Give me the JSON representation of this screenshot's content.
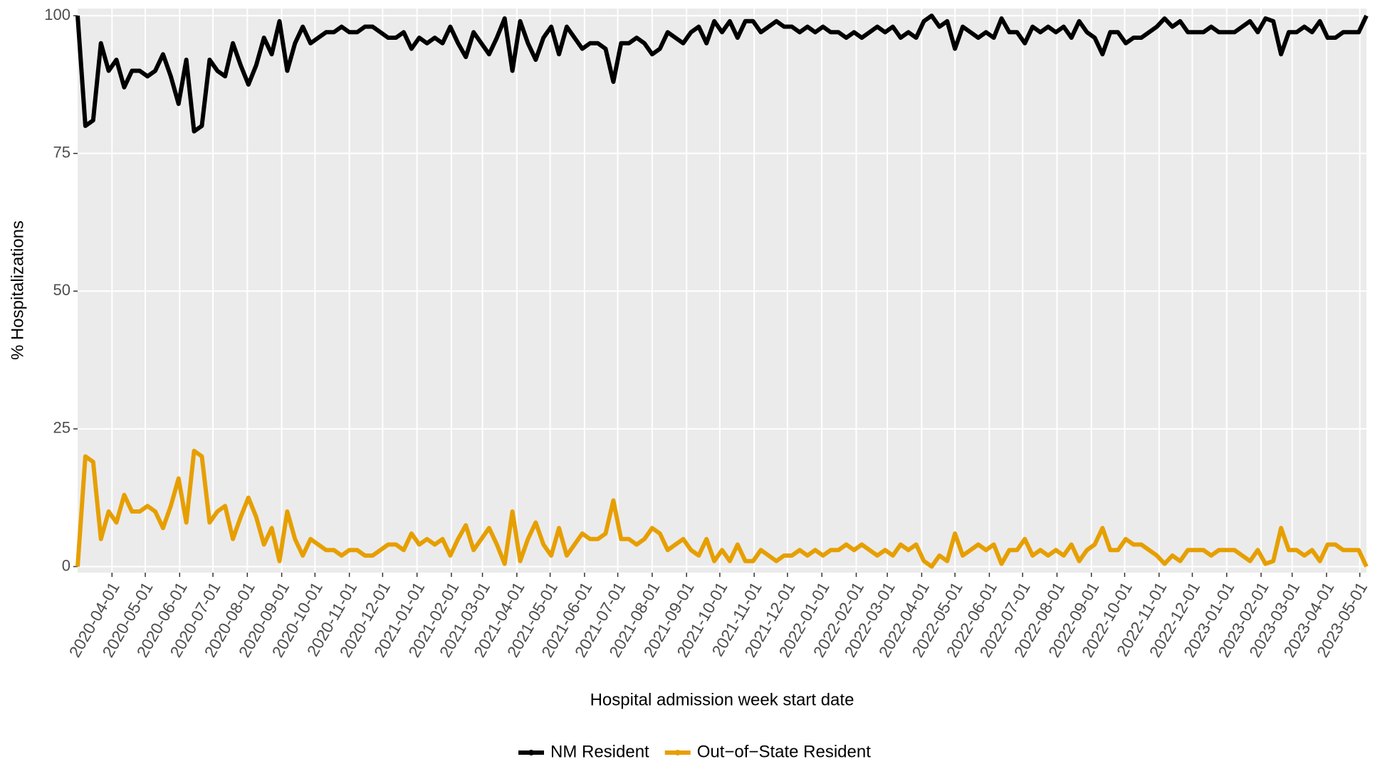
{
  "chart_data": {
    "type": "line",
    "xlabel": "Hospital admission week start date",
    "ylabel": "% Hospitalizations",
    "x": [
      "2020-03-01",
      "2020-03-08",
      "2020-03-15",
      "2020-03-22",
      "2020-03-29",
      "2020-04-05",
      "2020-04-12",
      "2020-04-19",
      "2020-04-26",
      "2020-05-03",
      "2020-05-10",
      "2020-05-17",
      "2020-05-24",
      "2020-05-31",
      "2020-06-07",
      "2020-06-14",
      "2020-06-21",
      "2020-06-28",
      "2020-07-05",
      "2020-07-12",
      "2020-07-19",
      "2020-07-26",
      "2020-08-02",
      "2020-08-09",
      "2020-08-16",
      "2020-08-23",
      "2020-08-30",
      "2020-09-06",
      "2020-09-13",
      "2020-09-20",
      "2020-09-27",
      "2020-10-04",
      "2020-10-11",
      "2020-10-18",
      "2020-10-25",
      "2020-11-01",
      "2020-11-08",
      "2020-11-15",
      "2020-11-22",
      "2020-11-29",
      "2020-12-06",
      "2020-12-13",
      "2020-12-20",
      "2020-12-27",
      "2021-01-03",
      "2021-01-10",
      "2021-01-17",
      "2021-01-24",
      "2021-01-31",
      "2021-02-07",
      "2021-02-14",
      "2021-02-21",
      "2021-02-28",
      "2021-03-07",
      "2021-03-14",
      "2021-03-21",
      "2021-03-28",
      "2021-04-04",
      "2021-04-11",
      "2021-04-18",
      "2021-04-25",
      "2021-05-02",
      "2021-05-09",
      "2021-05-16",
      "2021-05-23",
      "2021-05-30",
      "2021-06-06",
      "2021-06-13",
      "2021-06-20",
      "2021-06-27",
      "2021-07-04",
      "2021-07-11",
      "2021-07-18",
      "2021-07-25",
      "2021-08-01",
      "2021-08-08",
      "2021-08-15",
      "2021-08-22",
      "2021-08-29",
      "2021-09-05",
      "2021-09-12",
      "2021-09-19",
      "2021-09-26",
      "2021-10-03",
      "2021-10-10",
      "2021-10-17",
      "2021-10-24",
      "2021-10-31",
      "2021-11-07",
      "2021-11-14",
      "2021-11-21",
      "2021-11-28",
      "2021-12-05",
      "2021-12-12",
      "2021-12-19",
      "2021-12-26",
      "2022-01-02",
      "2022-01-09",
      "2022-01-16",
      "2022-01-23",
      "2022-01-30",
      "2022-02-06",
      "2022-02-13",
      "2022-02-20",
      "2022-02-27",
      "2022-03-06",
      "2022-03-13",
      "2022-03-20",
      "2022-03-27",
      "2022-04-03",
      "2022-04-10",
      "2022-04-17",
      "2022-04-24",
      "2022-05-01",
      "2022-05-08",
      "2022-05-15",
      "2022-05-22",
      "2022-05-29",
      "2022-06-05",
      "2022-06-12",
      "2022-06-19",
      "2022-06-26",
      "2022-07-03",
      "2022-07-10",
      "2022-07-17",
      "2022-07-24",
      "2022-07-31",
      "2022-08-07",
      "2022-08-14",
      "2022-08-21",
      "2022-08-28",
      "2022-09-04",
      "2022-09-11",
      "2022-09-18",
      "2022-09-25",
      "2022-10-02",
      "2022-10-09",
      "2022-10-16",
      "2022-10-23",
      "2022-10-30",
      "2022-11-06",
      "2022-11-13",
      "2022-11-20",
      "2022-11-27",
      "2022-12-04",
      "2022-12-11",
      "2022-12-18",
      "2022-12-25",
      "2023-01-01",
      "2023-01-08",
      "2023-01-15",
      "2023-01-22",
      "2023-01-29",
      "2023-02-05",
      "2023-02-12",
      "2023-02-19",
      "2023-02-26",
      "2023-03-05",
      "2023-03-12",
      "2023-03-19",
      "2023-03-26",
      "2023-04-02",
      "2023-04-09",
      "2023-04-16",
      "2023-04-23",
      "2023-04-30",
      "2023-05-07"
    ],
    "series": [
      {
        "name": "NM Resident",
        "color": "#000000",
        "values": [
          100,
          80,
          81,
          95,
          90,
          92,
          87,
          90,
          90,
          89,
          90,
          93,
          89,
          84,
          92,
          79,
          80,
          92,
          90,
          89,
          95,
          91,
          87.5,
          91,
          96,
          93,
          99,
          90,
          95,
          98,
          95,
          96,
          97,
          97,
          98,
          97,
          97,
          98,
          98,
          97,
          96,
          96,
          97,
          94,
          96,
          95,
          96,
          95,
          98,
          95,
          92.5,
          97,
          95,
          93,
          96,
          99.5,
          90,
          99,
          95,
          92,
          96,
          98,
          93,
          98,
          96,
          94,
          95,
          95,
          94,
          88,
          95,
          95,
          96,
          95,
          93,
          94,
          97,
          96,
          95,
          97,
          98,
          95,
          99,
          97,
          99,
          96,
          99,
          99,
          97,
          98,
          99,
          98,
          98,
          97,
          98,
          97,
          98,
          97,
          97,
          96,
          97,
          96,
          97,
          98,
          97,
          98,
          96,
          97,
          96,
          99,
          100,
          98,
          99,
          94,
          98,
          97,
          96,
          97,
          96,
          99.5,
          97,
          97,
          95,
          98,
          97,
          98,
          97,
          98,
          96,
          99,
          97,
          96,
          93,
          97,
          97,
          95,
          96,
          96,
          97,
          98,
          99.5,
          98,
          99,
          97,
          97,
          97,
          98,
          97,
          97,
          97,
          98,
          99,
          97,
          99.5,
          99,
          93,
          97,
          97,
          98,
          97,
          99,
          96,
          96,
          97,
          97,
          97,
          100
        ]
      },
      {
        "name": "Out−of−State Resident",
        "color": "#E69F00",
        "values": [
          0,
          20,
          19,
          5,
          10,
          8,
          13,
          10,
          10,
          11,
          10,
          7,
          11,
          16,
          8,
          21,
          20,
          8,
          10,
          11,
          5,
          9,
          12.5,
          9,
          4,
          7,
          1,
          10,
          5,
          2,
          5,
          4,
          3,
          3,
          2,
          3,
          3,
          2,
          2,
          3,
          4,
          4,
          3,
          6,
          4,
          5,
          4,
          5,
          2,
          5,
          7.5,
          3,
          5,
          7,
          4,
          0.5,
          10,
          1,
          5,
          8,
          4,
          2,
          7,
          2,
          4,
          6,
          5,
          5,
          6,
          12,
          5,
          5,
          4,
          5,
          7,
          6,
          3,
          4,
          5,
          3,
          2,
          5,
          1,
          3,
          1,
          4,
          1,
          1,
          3,
          2,
          1,
          2,
          2,
          3,
          2,
          3,
          2,
          3,
          3,
          4,
          3,
          4,
          3,
          2,
          3,
          2,
          4,
          3,
          4,
          1,
          0,
          2,
          1,
          6,
          2,
          3,
          4,
          3,
          4,
          0.5,
          3,
          3,
          5,
          2,
          3,
          2,
          3,
          2,
          4,
          1,
          3,
          4,
          7,
          3,
          3,
          5,
          4,
          4,
          3,
          2,
          0.5,
          2,
          1,
          3,
          3,
          3,
          2,
          3,
          3,
          3,
          2,
          1,
          3,
          0.5,
          1,
          7,
          3,
          3,
          2,
          3,
          1,
          4,
          4,
          3,
          3,
          3,
          0
        ]
      }
    ],
    "xlim": [
      "2020-03-01",
      "2023-05-07"
    ],
    "xticks": [
      "2020-04-01",
      "2020-05-01",
      "2020-06-01",
      "2020-07-01",
      "2020-08-01",
      "2020-09-01",
      "2020-10-01",
      "2020-11-01",
      "2020-12-01",
      "2021-01-01",
      "2021-02-01",
      "2021-03-01",
      "2021-04-01",
      "2021-05-01",
      "2021-06-01",
      "2021-07-01",
      "2021-08-01",
      "2021-09-01",
      "2021-10-01",
      "2021-11-01",
      "2021-12-01",
      "2022-01-01",
      "2022-02-01",
      "2022-03-01",
      "2022-04-01",
      "2022-05-01",
      "2022-06-01",
      "2022-07-01",
      "2022-08-01",
      "2022-09-01",
      "2022-10-01",
      "2022-11-01",
      "2022-12-01",
      "2023-01-01",
      "2023-02-01",
      "2023-03-01",
      "2023-04-01",
      "2023-05-01"
    ],
    "ylim": [
      -1.1,
      101.3
    ],
    "yticks": [
      0,
      25,
      50,
      75,
      100
    ],
    "grid": true,
    "legend": "bottom"
  }
}
